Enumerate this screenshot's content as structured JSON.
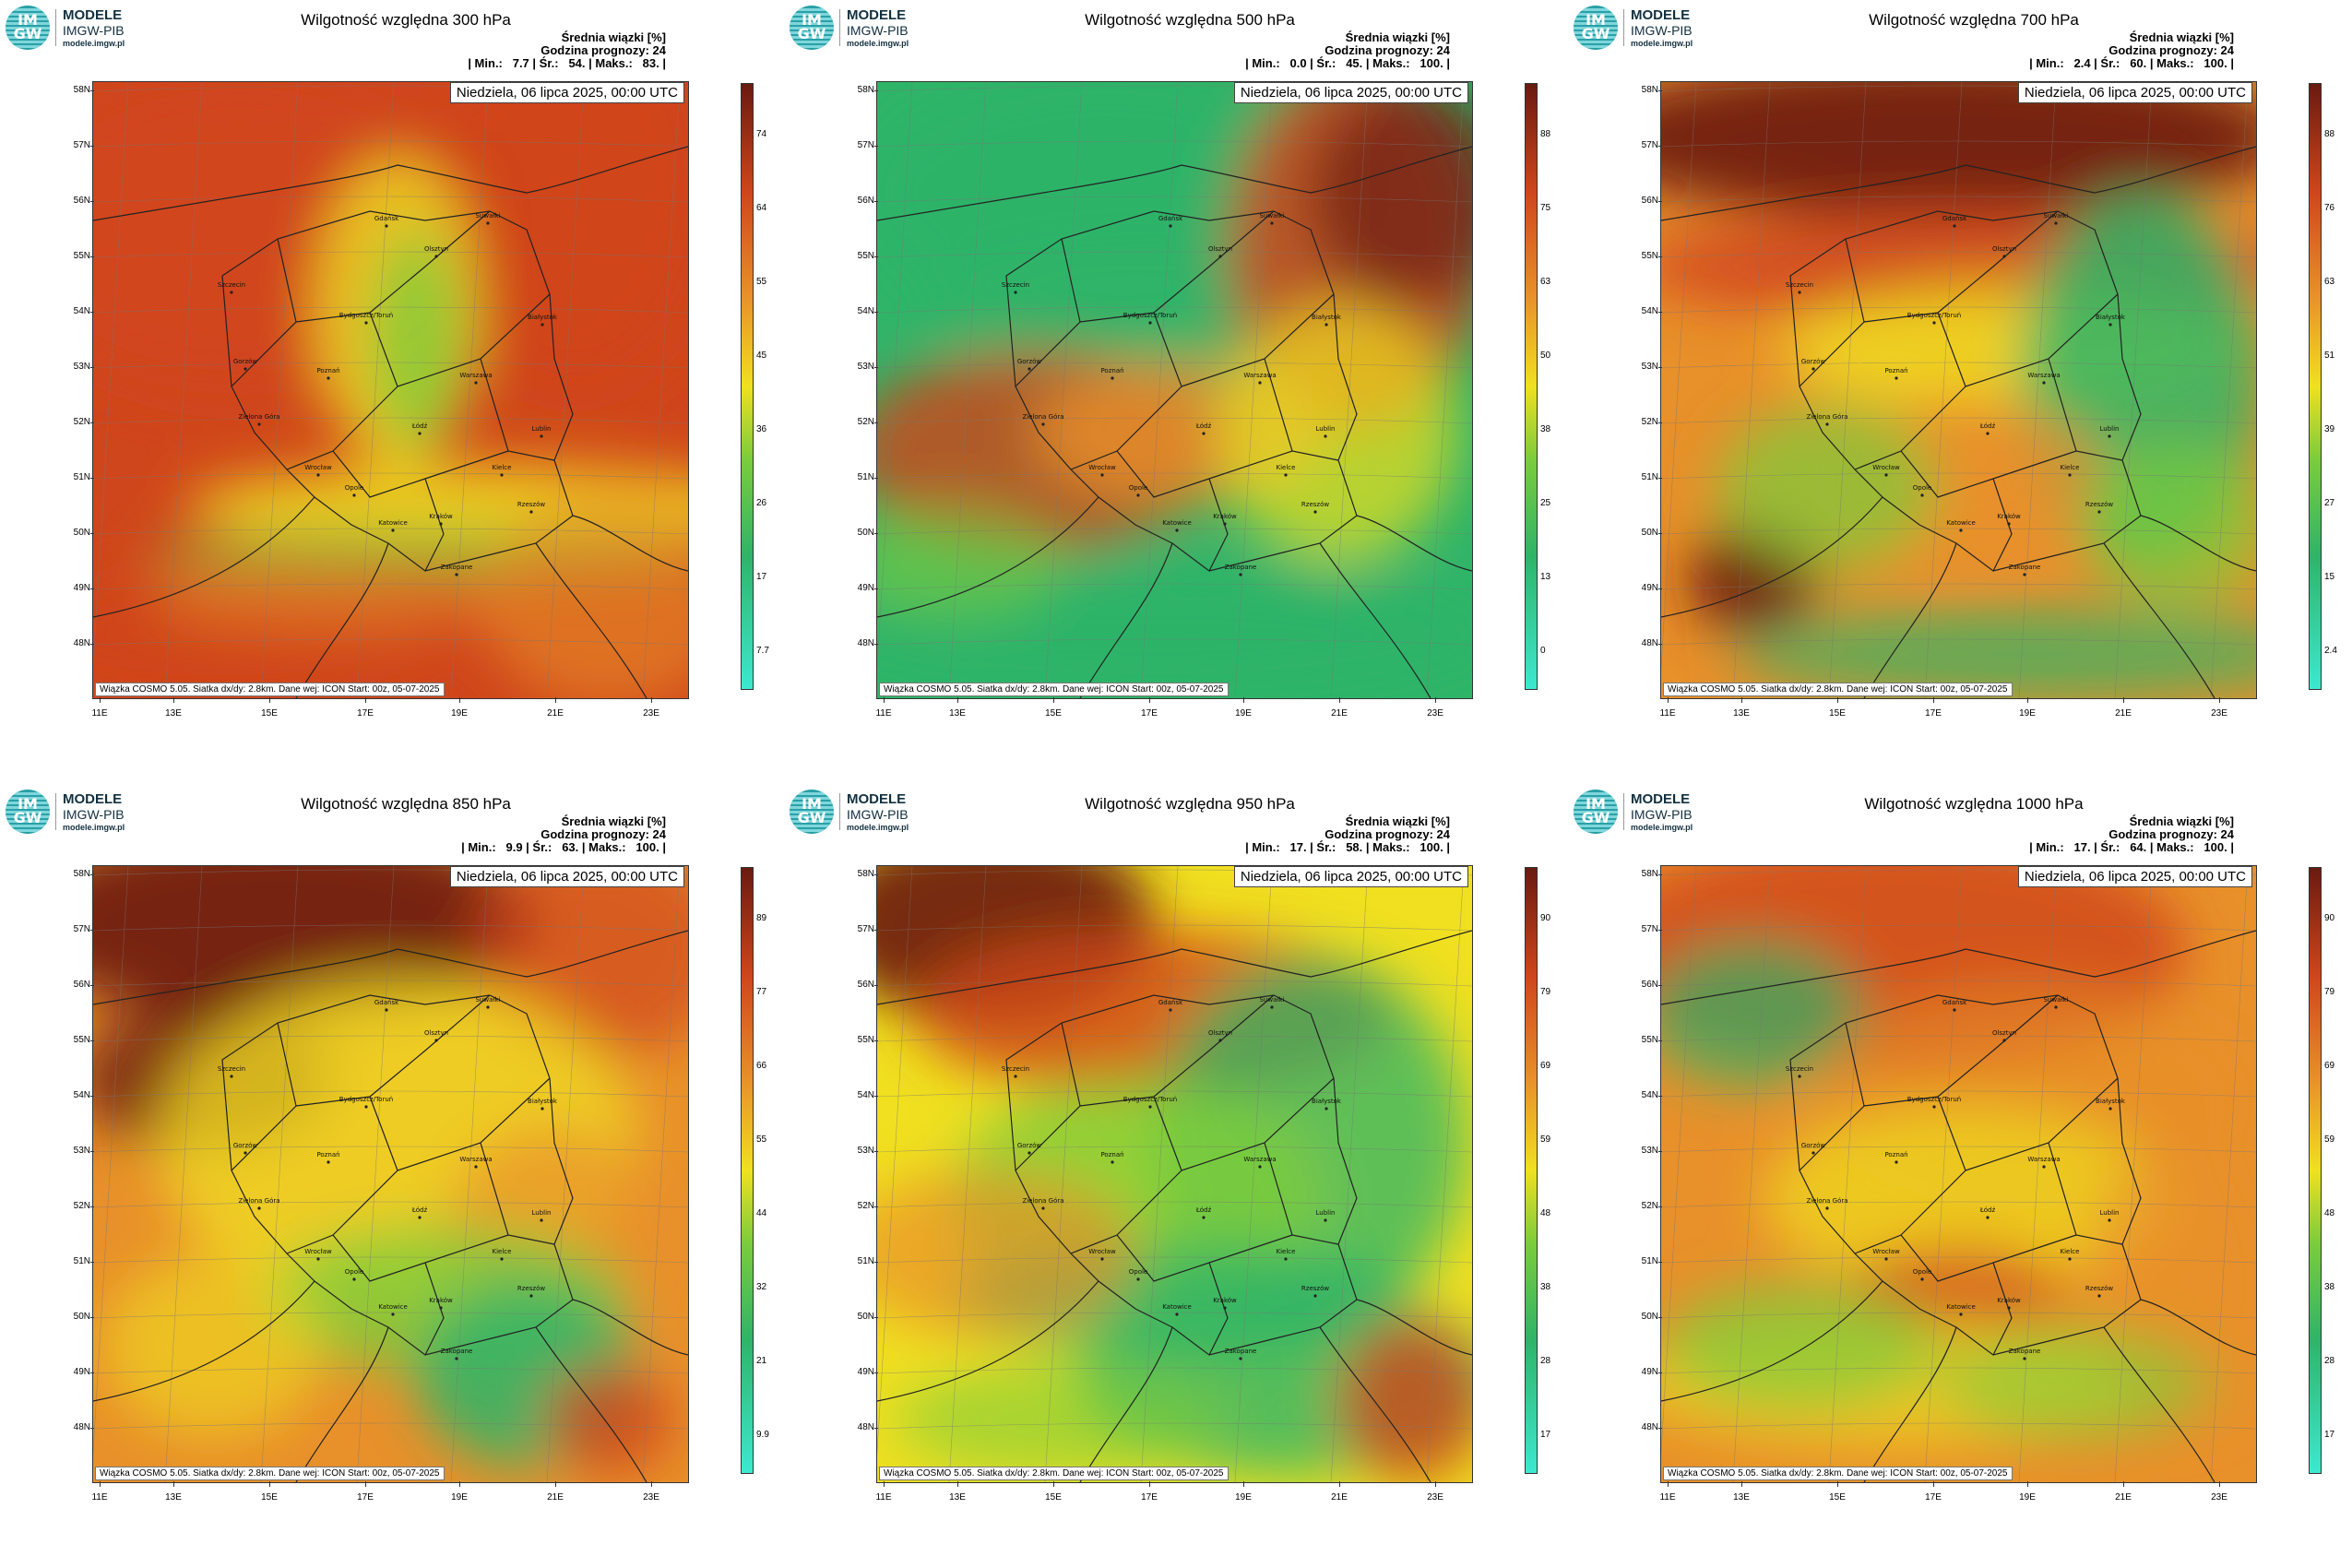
{
  "logo": {
    "top": "MODELE",
    "mid": "IMGW-PIB",
    "url": "modele.imgw.pl",
    "badge_top": "IM",
    "badge_bottom": "GW"
  },
  "labels": {
    "stats_title": "Średnia wiązki [%]",
    "forecast_hour": "Godzina prognozy: 24",
    "date": "Niedziela, 06 lipca 2025, 00:00 UTC",
    "footer": "Wiązka COSMO 5.05. Siatka dx/dy: 2.8km. Dane wej: ICON Start: 00z, 05-07-2025",
    "min": "Min.:",
    "avg": "Śr.:",
    "max": "Maks.:"
  },
  "axes": {
    "lat": [
      "58N",
      "57N",
      "56N",
      "55N",
      "54N",
      "53N",
      "52N",
      "51N",
      "50N",
      "49N",
      "48N"
    ],
    "lon": [
      "11E",
      "13E",
      "15E",
      "17E",
      "19E",
      "21E",
      "23E"
    ]
  },
  "colors": {
    "teal": "#3de8d0",
    "green": "#2fb468",
    "lightgreen": "#7ccc3c",
    "yellow": "#f0e020",
    "orange": "#e8902a",
    "red": "#d0461c",
    "darkred": "#6a1a10"
  },
  "cities": [
    "Gdańsk",
    "Olsztyn",
    "Suwałki",
    "Szczecin",
    "Bydgoszcz/Toruń",
    "Białystok",
    "Gorzów",
    "Poznań",
    "Warszawa",
    "Zielona Góra",
    "Łódź",
    "Lublin",
    "Wrocław",
    "Kielce",
    "Opole",
    "Rzeszów",
    "Katowice",
    "Kraków",
    "Zakopane"
  ],
  "panels": [
    {
      "title": "Wilgotność względna 300 hPa",
      "min": "7.7",
      "avg": "54.",
      "max": "83.",
      "colorbar": [
        "74",
        "64",
        "55",
        "45",
        "36",
        "26",
        "17",
        "7.7"
      ],
      "base": "red"
    },
    {
      "title": "Wilgotność względna 500 hPa",
      "min": "0.0",
      "avg": "45.",
      "max": "100.",
      "colorbar": [
        "88",
        "75",
        "63",
        "50",
        "38",
        "25",
        "13",
        "0"
      ],
      "base": "green"
    },
    {
      "title": "Wilgotność względna 700 hPa",
      "min": "2.4",
      "avg": "60.",
      "max": "100.",
      "colorbar": [
        "88",
        "76",
        "63",
        "51",
        "39",
        "27",
        "15",
        "2.4"
      ],
      "base": "orange"
    },
    {
      "title": "Wilgotność względna 850 hPa",
      "min": "9.9",
      "avg": "63.",
      "max": "100.",
      "colorbar": [
        "89",
        "77",
        "66",
        "55",
        "44",
        "32",
        "21",
        "9.9"
      ],
      "base": "orange"
    },
    {
      "title": "Wilgotność względna 950 hPa",
      "min": "17.",
      "avg": "58.",
      "max": "100.",
      "colorbar": [
        "90",
        "79",
        "69",
        "59",
        "48",
        "38",
        "28",
        "17"
      ],
      "base": "yellow"
    },
    {
      "title": "Wilgotność względna 1000 hPa",
      "min": "17.",
      "avg": "64.",
      "max": "100.",
      "colorbar": [
        "90",
        "79",
        "69",
        "59",
        "48",
        "38",
        "28",
        "17"
      ],
      "base": "orange"
    }
  ]
}
